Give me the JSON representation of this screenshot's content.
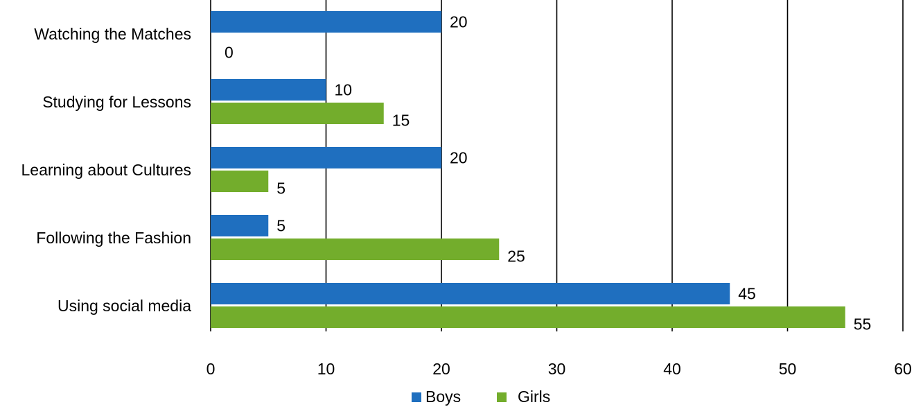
{
  "chart_data": {
    "type": "bar",
    "orientation": "horizontal",
    "title": "",
    "xlabel": "",
    "ylabel": "",
    "categories": [
      "Watching the Matches",
      "Studying for Lessons",
      "Learning about Cultures",
      "Following the Fashion",
      "Using social media"
    ],
    "series": [
      {
        "name": "Boys",
        "color": "#1f6fbf",
        "values": [
          20,
          10,
          20,
          5,
          45
        ]
      },
      {
        "name": "Girls",
        "color": "#73ad2c",
        "values": [
          0,
          15,
          5,
          25,
          55
        ]
      }
    ],
    "xlim": [
      0,
      60
    ],
    "xticks": [
      0,
      10,
      20,
      30,
      40,
      50,
      60
    ],
    "grid": "vertical",
    "legend_position": "bottom",
    "data_labels": true
  }
}
